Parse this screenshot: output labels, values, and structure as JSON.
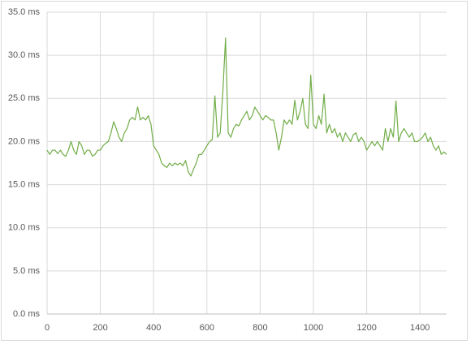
{
  "chart_data": {
    "type": "line",
    "x": [
      0,
      10,
      20,
      30,
      40,
      50,
      60,
      70,
      80,
      90,
      100,
      110,
      120,
      130,
      140,
      150,
      160,
      170,
      180,
      190,
      200,
      210,
      220,
      230,
      240,
      250,
      260,
      270,
      280,
      290,
      300,
      310,
      320,
      330,
      340,
      350,
      360,
      370,
      380,
      390,
      400,
      410,
      420,
      430,
      440,
      450,
      460,
      470,
      480,
      490,
      500,
      510,
      520,
      530,
      540,
      550,
      560,
      570,
      580,
      590,
      600,
      610,
      620,
      630,
      640,
      650,
      660,
      670,
      680,
      690,
      700,
      710,
      720,
      730,
      740,
      750,
      760,
      770,
      780,
      790,
      800,
      810,
      820,
      830,
      840,
      850,
      860,
      870,
      880,
      890,
      900,
      910,
      920,
      930,
      940,
      950,
      960,
      970,
      980,
      990,
      1000,
      1010,
      1020,
      1030,
      1040,
      1050,
      1060,
      1070,
      1080,
      1090,
      1100,
      1110,
      1120,
      1130,
      1140,
      1150,
      1160,
      1170,
      1180,
      1190,
      1200,
      1210,
      1220,
      1230,
      1240,
      1250,
      1260,
      1270,
      1280,
      1290,
      1300,
      1310,
      1320,
      1330,
      1340,
      1350,
      1360,
      1370,
      1380,
      1390,
      1400,
      1410,
      1420,
      1430,
      1440,
      1450,
      1460,
      1470,
      1480,
      1490,
      1500
    ],
    "series": [
      {
        "color": "#70ad47",
        "values": [
          19,
          18.5,
          19,
          19,
          18.6,
          19,
          18.5,
          18.3,
          19,
          20,
          19,
          18.5,
          20,
          19.5,
          18.5,
          19,
          19,
          18.3,
          18.5,
          19,
          19,
          19.5,
          19.8,
          20,
          21,
          22.3,
          21.5,
          20.5,
          20,
          21,
          21.5,
          22.5,
          22.8,
          22.5,
          24,
          22.5,
          22.8,
          22.5,
          23,
          22,
          19.5,
          19,
          18.5,
          17.5,
          17.2,
          17,
          17.5,
          17.2,
          17.5,
          17.3,
          17.5,
          17.2,
          17.8,
          16.5,
          16,
          16.8,
          17.5,
          18.5,
          18.5,
          19,
          19.5,
          20,
          20.2,
          25.3,
          20.5,
          21,
          25.8,
          32,
          21,
          20.5,
          21.5,
          22,
          21.8,
          22.5,
          23,
          23.5,
          22.5,
          23,
          24,
          23.5,
          23,
          22.5,
          23,
          22.8,
          22.5,
          22.5,
          21,
          19,
          20.5,
          22.5,
          22,
          22.5,
          22,
          24.8,
          22.5,
          23.5,
          25,
          22,
          21.5,
          27.7,
          22,
          21.5,
          23,
          22,
          25.5,
          21,
          22,
          21,
          21.5,
          20.5,
          21,
          20,
          21,
          20.5,
          20,
          20.8,
          21,
          20,
          20.5,
          20,
          19,
          19.5,
          20,
          19.5,
          20,
          19.5,
          19,
          21.5,
          20,
          21.5,
          20.5,
          24.7,
          20,
          21,
          21.5,
          21,
          20.5,
          21,
          20,
          20,
          20.2,
          20.5,
          21,
          20,
          20.5,
          19.5,
          19,
          19.5,
          18.5,
          18.8,
          18.5
        ]
      }
    ],
    "xlim": [
      0,
      1500
    ],
    "xticks": [
      0,
      200,
      400,
      600,
      800,
      1000,
      1200,
      1400
    ],
    "ylim": [
      0,
      35
    ],
    "yticks": [
      {
        "value": 0,
        "label": "0.0 ms"
      },
      {
        "value": 5,
        "label": "5.0 ms"
      },
      {
        "value": 10,
        "label": "10.0 ms"
      },
      {
        "value": 15,
        "label": "15.0 ms"
      },
      {
        "value": 20,
        "label": "20.0 ms"
      },
      {
        "value": 25,
        "label": "25.0 ms"
      },
      {
        "value": 30,
        "label": "30.0 ms"
      },
      {
        "value": 35,
        "label": "35.0 ms"
      }
    ],
    "grid": true
  }
}
